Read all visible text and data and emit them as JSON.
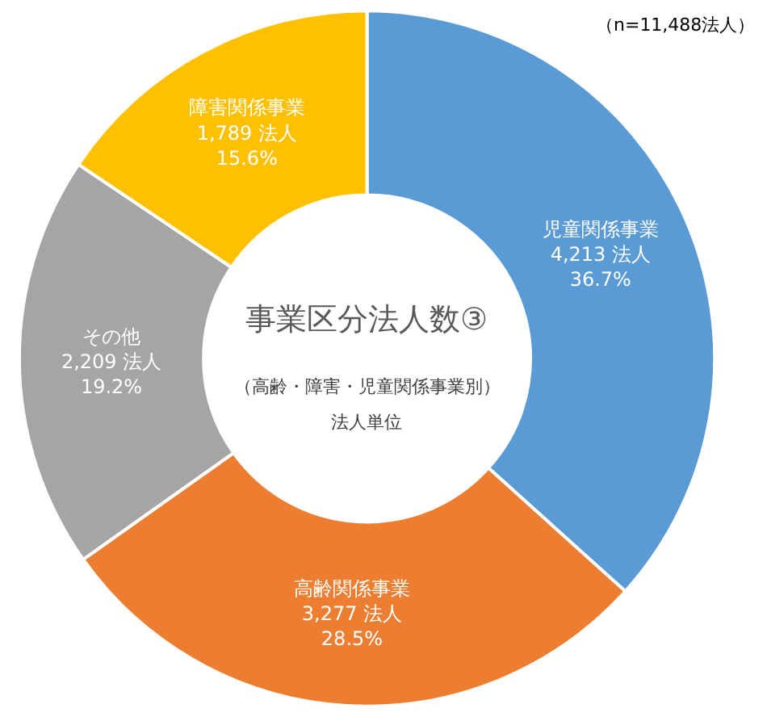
{
  "chart_data": {
    "type": "donut",
    "title": "事業区分法人数③",
    "subtitle": "（高齢・障害・児童関係事業別）",
    "categories": [
      "児童関係事業",
      "高齢関係事業",
      "その他",
      "障害関係事業"
    ],
    "values": [
      4213,
      3277,
      2209,
      1789
    ],
    "value_labels": [
      "4,213 法人\n36.7%",
      "3,277 法人\n28.5%",
      "2,209 法人\n19.2%",
      "1,789 法人\n15.6%"
    ],
    "colors": [
      "#5b9bd5",
      "#ed7d31",
      "#a5a5a5",
      "#ffc000"
    ],
    "annotations": [
      "（n=11,488法人）",
      "法人単位"
    ],
    "legend": false
  }
}
